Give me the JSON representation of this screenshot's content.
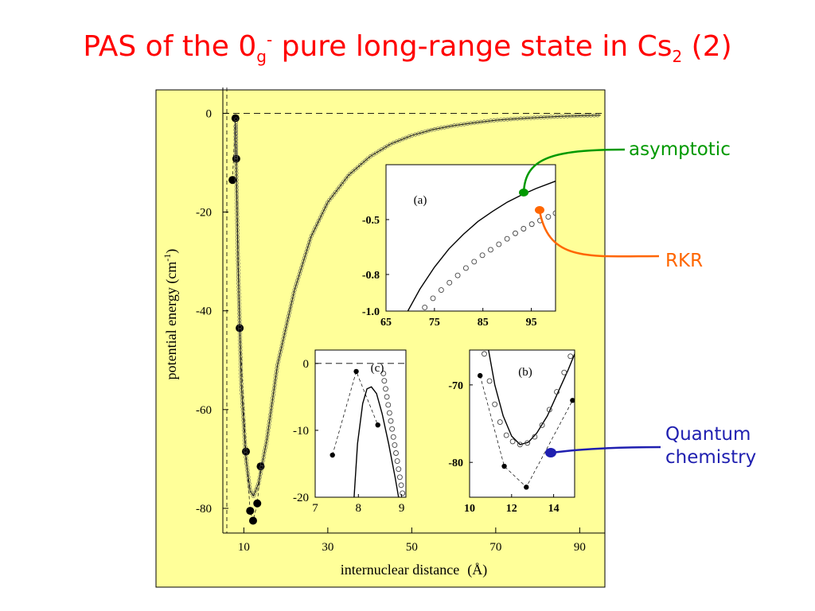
{
  "title": {
    "prefix": "PAS of the 0",
    "sub1": "g",
    "sup1": "-",
    "middle": " pure long-range state in Cs",
    "sub2": "2",
    "suffix": " (2)"
  },
  "callouts": {
    "asymptotic": "asymptotic",
    "rkr": "RKR",
    "qc_line1": "Quantum",
    "qc_line2": "chemistry"
  },
  "colors": {
    "title": "#ff0000",
    "panel_bg": "#ffff99",
    "asymptotic": "#009900",
    "rkr": "#ff6600",
    "quantum_chemistry": "#1f1fb0"
  },
  "chart_data": [
    {
      "id": "main",
      "type": "line",
      "xlabel": "internuclear distance",
      "xlabel_unit": "(Å)",
      "ylabel_prefix": "potential energy (cm",
      "ylabel_sup": "-1",
      "ylabel_suffix": ")",
      "xlim": [
        5,
        96
      ],
      "ylim": [
        -85,
        2
      ],
      "xticks": [
        10,
        30,
        50,
        70,
        90
      ],
      "yticks": [
        0,
        -20,
        -40,
        -60,
        -80
      ],
      "reference_line_y": 0,
      "series": [
        {
          "kind": "quantum-chemistry-points",
          "points": [
            [
              7.3,
              -13.5
            ],
            [
              8.0,
              -1
            ],
            [
              8.2,
              -9.2
            ],
            [
              9.0,
              -43.5
            ],
            [
              10.5,
              -68.5
            ],
            [
              11.5,
              -80.5
            ],
            [
              12.2,
              -82.5
            ],
            [
              13.2,
              -79
            ],
            [
              14.0,
              -71.5
            ]
          ]
        },
        {
          "kind": "potential-curve",
          "points": [
            [
              8.0,
              -2
            ],
            [
              8.6,
              -30
            ],
            [
              9.4,
              -55
            ],
            [
              10.5,
              -70
            ],
            [
              11.5,
              -76.5
            ],
            [
              12.3,
              -77.5
            ],
            [
              13.5,
              -75
            ],
            [
              15.5,
              -66
            ],
            [
              18,
              -51
            ],
            [
              22,
              -36
            ],
            [
              26,
              -25
            ],
            [
              30,
              -18
            ],
            [
              35,
              -12.5
            ],
            [
              40,
              -8.8
            ],
            [
              45,
              -6.2
            ],
            [
              50,
              -4.5
            ],
            [
              55,
              -3.3
            ],
            [
              60,
              -2.5
            ],
            [
              65,
              -1.9
            ],
            [
              70,
              -1.4
            ],
            [
              75,
              -1.1
            ],
            [
              80,
              -0.85
            ],
            [
              85,
              -0.65
            ],
            [
              90,
              -0.5
            ],
            [
              95,
              -0.4
            ]
          ]
        }
      ]
    },
    {
      "id": "a",
      "type": "line",
      "label": "(a)",
      "xlim": [
        65,
        100
      ],
      "ylim": [
        -1.0,
        -0.2
      ],
      "xticks": [
        65,
        75,
        85,
        95
      ],
      "yticks": [
        "-0.5",
        "-0.8",
        "-1.0"
      ],
      "series": [
        {
          "kind": "asymptotic-curve",
          "points": [
            [
              69.5,
              -1.0
            ],
            [
              72,
              -0.88
            ],
            [
              75,
              -0.76
            ],
            [
              78,
              -0.66
            ],
            [
              81,
              -0.58
            ],
            [
              84,
              -0.51
            ],
            [
              87,
              -0.455
            ],
            [
              90,
              -0.405
            ],
            [
              93,
              -0.365
            ],
            [
              96,
              -0.33
            ],
            [
              100,
              -0.29
            ]
          ]
        },
        {
          "kind": "rkr-points",
          "points": [
            [
              73,
              -0.98
            ],
            [
              74.7,
              -0.93
            ],
            [
              76.4,
              -0.885
            ],
            [
              78.1,
              -0.845
            ],
            [
              79.8,
              -0.805
            ],
            [
              81.5,
              -0.765
            ],
            [
              83.2,
              -0.73
            ],
            [
              84.9,
              -0.695
            ],
            [
              86.6,
              -0.665
            ],
            [
              88.3,
              -0.635
            ],
            [
              90,
              -0.605
            ],
            [
              91.7,
              -0.575
            ],
            [
              93.4,
              -0.55
            ],
            [
              95.1,
              -0.525
            ],
            [
              96.8,
              -0.505
            ],
            [
              98.5,
              -0.485
            ],
            [
              100,
              -0.465
            ]
          ]
        }
      ]
    },
    {
      "id": "c",
      "type": "line",
      "label": "(c)",
      "xlim": [
        7,
        9.1
      ],
      "ylim": [
        -20,
        2
      ],
      "xticks": [
        7,
        8,
        9
      ],
      "yticks": [
        0,
        -10,
        -20
      ],
      "reference_line_y": 0,
      "series": [
        {
          "kind": "quantum-chemistry-points",
          "points": [
            [
              7.4,
              -13.7
            ],
            [
              7.95,
              -1.2
            ],
            [
              8.45,
              -9.2
            ]
          ]
        },
        {
          "kind": "potential-curve",
          "points": [
            [
              7.9,
              -20
            ],
            [
              7.98,
              -12
            ],
            [
              8.1,
              -6
            ],
            [
              8.2,
              -3.8
            ],
            [
              8.3,
              -3.5
            ],
            [
              8.42,
              -4.5
            ],
            [
              8.55,
              -7.5
            ],
            [
              8.7,
              -12
            ],
            [
              8.85,
              -17
            ],
            [
              8.93,
              -20
            ]
          ]
        },
        {
          "kind": "rkr-points",
          "points": [
            [
              8.58,
              -1.5
            ],
            [
              8.6,
              -2.6
            ],
            [
              8.63,
              -3.8
            ],
            [
              8.66,
              -5.0
            ],
            [
              8.69,
              -6.2
            ],
            [
              8.72,
              -7.4
            ],
            [
              8.75,
              -8.6
            ],
            [
              8.78,
              -9.8
            ],
            [
              8.81,
              -11.0
            ],
            [
              8.84,
              -12.2
            ],
            [
              8.87,
              -13.4
            ],
            [
              8.9,
              -14.6
            ],
            [
              8.93,
              -15.8
            ],
            [
              8.96,
              -17.0
            ],
            [
              8.99,
              -18.2
            ],
            [
              9.02,
              -19.4
            ]
          ]
        }
      ]
    },
    {
      "id": "b",
      "type": "line",
      "label": "(b)",
      "xlim": [
        10,
        15
      ],
      "ylim": [
        -84.5,
        -65.5
      ],
      "xticks": [
        10,
        12,
        14
      ],
      "yticks": [
        -70,
        -80
      ],
      "series": [
        {
          "kind": "quantum-chemistry-points",
          "points": [
            [
              10.5,
              -68.8
            ],
            [
              11.65,
              -80.5
            ],
            [
              12.7,
              -83.2
            ],
            [
              14.9,
              -72
            ]
          ]
        },
        {
          "kind": "potential-curve",
          "points": [
            [
              10.9,
              -65.5
            ],
            [
              11.2,
              -70
            ],
            [
              11.6,
              -74
            ],
            [
              12.0,
              -76.6
            ],
            [
              12.4,
              -77.7
            ],
            [
              12.8,
              -77.4
            ],
            [
              13.2,
              -76.2
            ],
            [
              13.7,
              -74
            ],
            [
              14.2,
              -71
            ],
            [
              14.7,
              -68
            ],
            [
              15.0,
              -66
            ]
          ]
        },
        {
          "kind": "rkr-points",
          "points": [
            [
              10.7,
              -66
            ],
            [
              10.95,
              -69.5
            ],
            [
              11.2,
              -72.5
            ],
            [
              11.45,
              -74.8
            ],
            [
              11.75,
              -76.5
            ],
            [
              12.05,
              -77.3
            ],
            [
              12.4,
              -77.7
            ],
            [
              12.75,
              -77.5
            ],
            [
              13.1,
              -76.7
            ],
            [
              13.45,
              -75.2
            ],
            [
              13.8,
              -73.2
            ],
            [
              14.15,
              -70.9
            ],
            [
              14.5,
              -68.4
            ],
            [
              14.8,
              -66.3
            ]
          ]
        }
      ]
    }
  ]
}
